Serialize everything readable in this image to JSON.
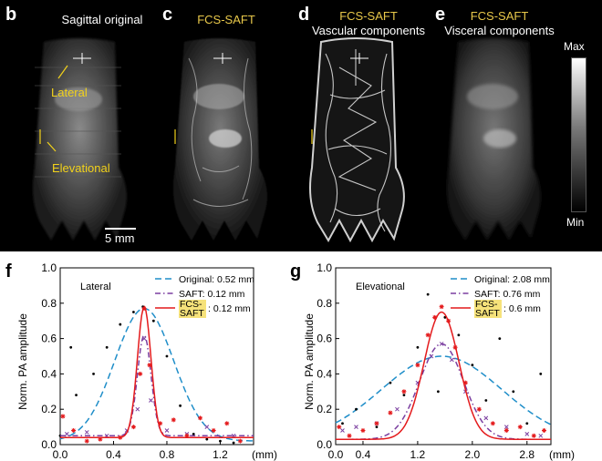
{
  "panels": [
    {
      "letter": "b",
      "title": [
        "Sagittal original"
      ],
      "title_color": "#ffffff"
    },
    {
      "letter": "c",
      "title": [
        "FCS-SAFT"
      ],
      "title_color": "#e8c84a"
    },
    {
      "letter": "d",
      "title": [
        "FCS-SAFT",
        "Vascular components"
      ],
      "title_color": "#ffffff"
    },
    {
      "letter": "e",
      "title": [
        "FCS-SAFT",
        "Visceral components"
      ],
      "title_color": "#ffffff"
    }
  ],
  "annotations": {
    "lateral": "Lateral",
    "elevational": "Elevational",
    "scale_bar": "5 mm"
  },
  "colorbar": {
    "max_label": "Max",
    "min_label": "Min"
  },
  "chart_data": [
    {
      "letter": "f",
      "type": "line",
      "title": "Lateral",
      "ylabel": "Norm. PA amplitude",
      "x_unit_label": "(mm)",
      "xlim": [
        0.0,
        1.45
      ],
      "ylim": [
        0.0,
        1.0
      ],
      "x_ticks": [
        0.0,
        0.4,
        0.8,
        1.2
      ],
      "y_ticks": [
        0.0,
        0.2,
        0.4,
        0.6,
        0.8,
        1.0
      ],
      "series": [
        {
          "name": "Original",
          "legend_value": "0.52 mm",
          "style": "dashed",
          "color": "#1f8ec9",
          "fwhm": 0.52,
          "peak": 0.77,
          "center": 0.63,
          "base": 0.02,
          "points_x": [
            0.0,
            0.08,
            0.12,
            0.25,
            0.35,
            0.45,
            0.55,
            0.62,
            0.7,
            0.8,
            0.9,
            1.0,
            1.1,
            1.2,
            1.3
          ],
          "points_y": [
            0.05,
            0.55,
            0.28,
            0.4,
            0.55,
            0.68,
            0.75,
            0.78,
            0.7,
            0.5,
            0.22,
            0.06,
            0.03,
            0.02,
            0.01
          ]
        },
        {
          "name": "SAFT",
          "legend_value": "0.12 mm",
          "style": "dashdot",
          "color": "#7b3fa0",
          "fwhm": 0.12,
          "peak": 0.62,
          "center": 0.63,
          "base": 0.05,
          "points_x": [
            0.05,
            0.2,
            0.35,
            0.5,
            0.58,
            0.63,
            0.68,
            0.8,
            0.95,
            1.1,
            1.3
          ],
          "points_y": [
            0.06,
            0.07,
            0.05,
            0.08,
            0.2,
            0.6,
            0.25,
            0.08,
            0.06,
            0.1,
            0.05
          ]
        },
        {
          "name": "FCS-SAFT",
          "legend_value": "0.12 mm",
          "style": "solid",
          "color": "#e41a1c",
          "fwhm": 0.12,
          "peak": 0.78,
          "center": 0.63,
          "base": 0.04,
          "points_x": [
            0.02,
            0.1,
            0.2,
            0.3,
            0.45,
            0.55,
            0.6,
            0.63,
            0.67,
            0.75,
            0.85,
            0.95,
            1.05,
            1.15,
            1.25,
            1.35
          ],
          "points_y": [
            0.16,
            0.08,
            0.02,
            0.03,
            0.04,
            0.1,
            0.4,
            0.77,
            0.45,
            0.12,
            0.14,
            0.05,
            0.15,
            0.08,
            0.12,
            0.02
          ]
        }
      ]
    },
    {
      "letter": "g",
      "type": "line",
      "title": "Elevational",
      "ylabel": "Norm. PA amplitude",
      "x_unit_label": "(mm)",
      "xlim": [
        0.0,
        3.15
      ],
      "ylim": [
        0.0,
        1.0
      ],
      "x_ticks": [
        0.0,
        0.4,
        1.2,
        2.0,
        2.8
      ],
      "y_ticks": [
        0.0,
        0.2,
        0.4,
        0.6,
        0.8,
        1.0
      ],
      "series": [
        {
          "name": "Original",
          "legend_value": "2.08 mm",
          "style": "dashed",
          "color": "#1f8ec9",
          "fwhm": 2.08,
          "peak": 0.5,
          "center": 1.55,
          "base": 0.02,
          "points_x": [
            0.1,
            0.3,
            0.6,
            0.8,
            1.0,
            1.2,
            1.35,
            1.5,
            1.6,
            1.8,
            2.0,
            2.2,
            2.4,
            2.6,
            2.8,
            3.0
          ],
          "points_y": [
            0.12,
            0.2,
            0.1,
            0.35,
            0.28,
            0.55,
            0.85,
            0.3,
            0.72,
            0.62,
            0.45,
            0.25,
            0.6,
            0.3,
            0.12,
            0.4
          ]
        },
        {
          "name": "SAFT",
          "legend_value": "0.76 mm",
          "style": "dashdot",
          "color": "#7b3fa0",
          "fwhm": 0.76,
          "peak": 0.57,
          "center": 1.55,
          "base": 0.03,
          "points_x": [
            0.1,
            0.3,
            0.6,
            0.9,
            1.2,
            1.4,
            1.55,
            1.7,
            1.9,
            2.2,
            2.5,
            2.8,
            3.0
          ],
          "points_y": [
            0.08,
            0.1,
            0.12,
            0.2,
            0.35,
            0.5,
            0.57,
            0.48,
            0.3,
            0.15,
            0.1,
            0.06,
            0.05
          ]
        },
        {
          "name": "FCS-SAFT",
          "legend_value": "0.6 mm",
          "style": "solid",
          "color": "#e41a1c",
          "fwhm": 0.6,
          "peak": 0.75,
          "center": 1.55,
          "base": 0.03,
          "points_x": [
            0.05,
            0.2,
            0.4,
            0.6,
            0.8,
            1.0,
            1.2,
            1.35,
            1.45,
            1.55,
            1.65,
            1.75,
            1.9,
            2.1,
            2.3,
            2.5,
            2.7,
            2.9,
            3.05
          ],
          "points_y": [
            0.1,
            0.05,
            0.08,
            0.12,
            0.18,
            0.3,
            0.45,
            0.62,
            0.72,
            0.78,
            0.7,
            0.55,
            0.35,
            0.2,
            0.12,
            0.08,
            0.1,
            0.05,
            0.08
          ]
        }
      ]
    }
  ]
}
